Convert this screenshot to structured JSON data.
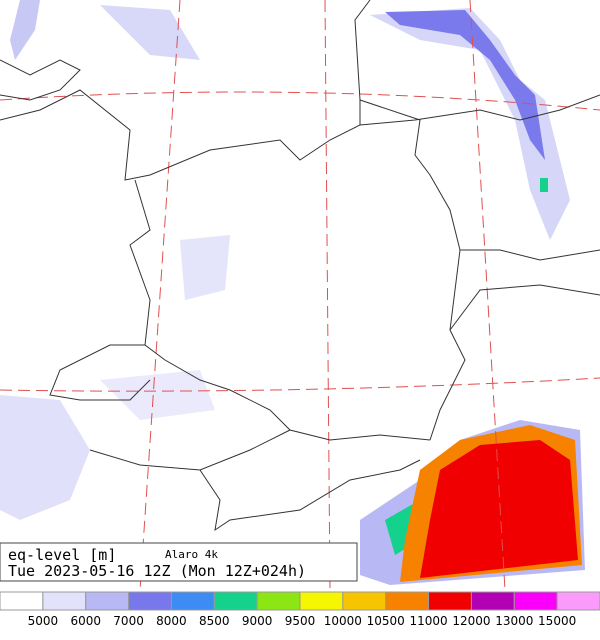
{
  "map": {
    "variable": "eq-level [m]",
    "model": "Alaro 4k",
    "valid_time": "Tue 2023-05-16 12Z (Mon 12Z+024h)"
  },
  "legend": {
    "colors": [
      "#ffffff",
      "#e2e2fa",
      "#b8b8f4",
      "#7878ec",
      "#3c8cf4",
      "#14d28c",
      "#8ce614",
      "#f6f600",
      "#f6c400",
      "#f68200",
      "#f00000",
      "#b400b4",
      "#fa00fa",
      "#fa9afa"
    ],
    "labels": [
      5000,
      6000,
      7000,
      8000,
      8500,
      9000,
      9500,
      10000,
      10500,
      11000,
      12000,
      13000,
      15000
    ]
  }
}
